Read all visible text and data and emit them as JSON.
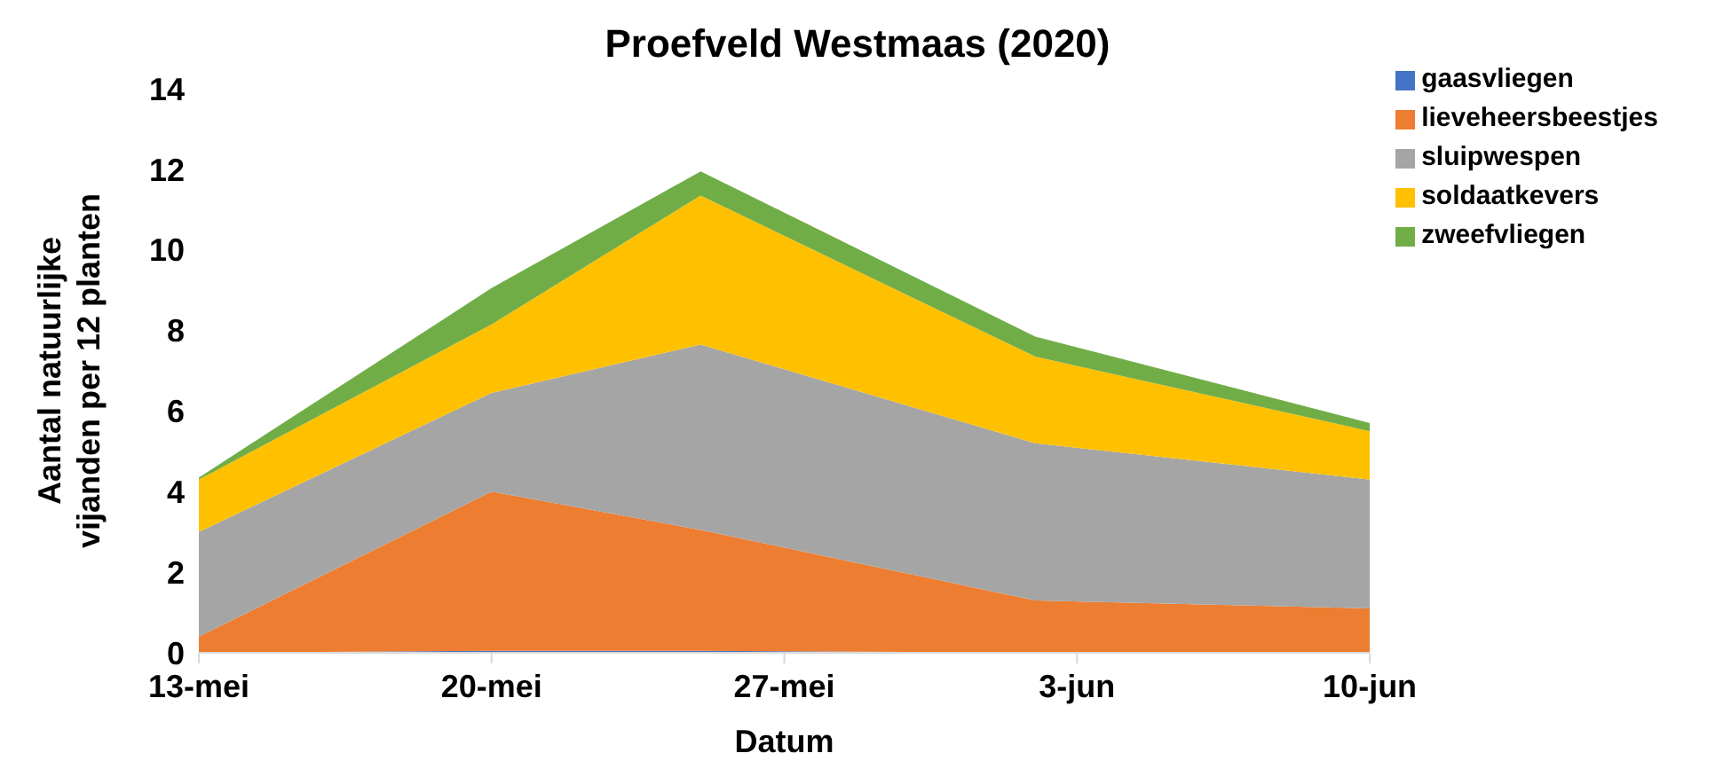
{
  "chart_data": {
    "type": "area",
    "title": "Proefveld Westmaas (2020)",
    "xlabel": "Datum",
    "ylabel": "Aantal natuurlijke vijanden per 12 planten",
    "x": [
      "2020-05-13",
      "2020-05-20",
      "2020-05-25",
      "2020-06-02",
      "2020-06-10"
    ],
    "series": [
      {
        "name": "gaasvliegen",
        "color": "#4472c4",
        "values": [
          0,
          0.05,
          0.05,
          0,
          0
        ]
      },
      {
        "name": "lieveheersbeestjes",
        "color": "#ed7d31",
        "values": [
          0.4,
          3.95,
          3.0,
          1.3,
          1.1
        ]
      },
      {
        "name": "sluipwespen",
        "color": "#a5a5a5",
        "values": [
          2.6,
          2.45,
          4.6,
          3.9,
          3.2
        ]
      },
      {
        "name": "soldaatkevers",
        "color": "#ffc000",
        "values": [
          1.3,
          1.7,
          3.7,
          2.15,
          1.2
        ]
      },
      {
        "name": "zweefvliegen",
        "color": "#70ad47",
        "values": [
          0.05,
          0.9,
          0.6,
          0.5,
          0.2
        ]
      }
    ],
    "stacked": true,
    "xlim": [
      "2020-05-13",
      "2020-06-10"
    ],
    "xticks": [
      {
        "value": "2020-05-13",
        "label": "13-mei"
      },
      {
        "value": "2020-05-20",
        "label": "20-mei"
      },
      {
        "value": "2020-05-27",
        "label": "27-mei"
      },
      {
        "value": "2020-06-03",
        "label": "3-jun"
      },
      {
        "value": "2020-06-10",
        "label": "10-jun"
      }
    ],
    "ylim": [
      0,
      14
    ],
    "yticks": [
      0,
      2,
      4,
      6,
      8,
      10,
      12,
      14
    ],
    "grid": false,
    "legend": "top right"
  }
}
